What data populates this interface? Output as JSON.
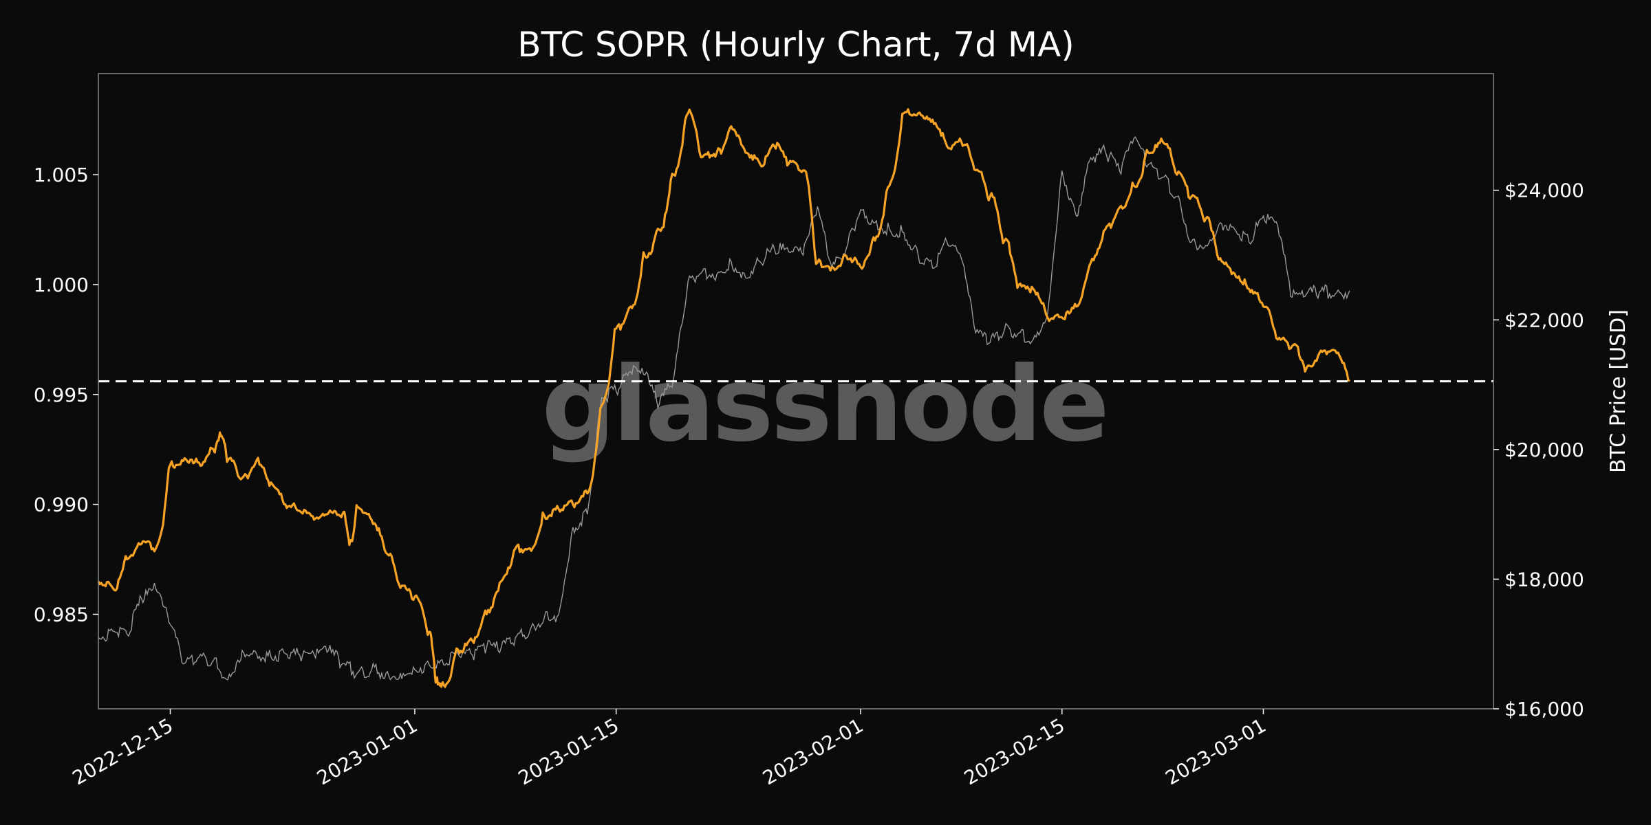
{
  "watermark": "glassnode",
  "chart_data": {
    "type": "line",
    "title": "BTC SOPR (Hourly Chart, 7d MA)",
    "xlabel": "",
    "ylabel_left": "",
    "ylabel_right": "BTC Price [USD]",
    "x_range": [
      "2022-12-10",
      "2023-03-17"
    ],
    "x_ticks": [
      "2022-12-15",
      "2023-01-01",
      "2023-01-15",
      "2023-02-01",
      "2023-02-15",
      "2023-03-01"
    ],
    "ylim_left": [
      0.9807,
      1.0096
    ],
    "y_ticks_left": [
      "0.985",
      "0.990",
      "0.995",
      "1.000",
      "1.005"
    ],
    "ylim_right": [
      16000,
      25800
    ],
    "y_ticks_right": [
      "$16,000",
      "$18,000",
      "$20,000",
      "$22,000",
      "$24,000"
    ],
    "y_tick_values_right": [
      16000,
      18000,
      20000,
      22000,
      24000
    ],
    "reference_line": {
      "y": 0.9956,
      "style": "dashed",
      "color": "#ffffff"
    },
    "grid": false,
    "series": [
      {
        "axis": "left",
        "color": "#f7a325",
        "points": [
          [
            "2022-12-10",
            0.9865
          ],
          [
            "2022-12-11",
            0.9862
          ],
          [
            "2022-12-12",
            0.9875
          ],
          [
            "2022-12-13",
            0.9882
          ],
          [
            "2022-12-14",
            0.988
          ],
          [
            "2022-12-15",
            0.9918
          ],
          [
            "2022-12-16",
            0.9921
          ],
          [
            "2022-12-17",
            0.9919
          ],
          [
            "2022-12-18",
            0.9925
          ],
          [
            "2022-12-18T12",
            0.9931
          ],
          [
            "2022-12-19",
            0.992
          ],
          [
            "2022-12-20",
            0.9912
          ],
          [
            "2022-12-21",
            0.992
          ],
          [
            "2022-12-22",
            0.991
          ],
          [
            "2022-12-23",
            0.99
          ],
          [
            "2022-12-24",
            0.9897
          ],
          [
            "2022-12-25",
            0.9893
          ],
          [
            "2022-12-26",
            0.9896
          ],
          [
            "2022-12-27",
            0.9896
          ],
          [
            "2022-12-27T12",
            0.9883
          ],
          [
            "2022-12-28",
            0.9899
          ],
          [
            "2022-12-29",
            0.9893
          ],
          [
            "2022-12-30",
            0.9878
          ],
          [
            "2022-12-31",
            0.9862
          ],
          [
            "2023-01-01",
            0.9858
          ],
          [
            "2023-01-02",
            0.9842
          ],
          [
            "2023-01-02T12",
            0.982
          ],
          [
            "2023-01-03",
            0.9818
          ],
          [
            "2023-01-04",
            0.9834
          ],
          [
            "2023-01-05",
            0.9838
          ],
          [
            "2023-01-06",
            0.985
          ],
          [
            "2023-01-07",
            0.9865
          ],
          [
            "2023-01-08",
            0.988
          ],
          [
            "2023-01-09",
            0.988
          ],
          [
            "2023-01-10",
            0.9895
          ],
          [
            "2023-01-11",
            0.9898
          ],
          [
            "2023-01-12",
            0.99
          ],
          [
            "2023-01-13",
            0.9905
          ],
          [
            "2023-01-14",
            0.9945
          ],
          [
            "2023-01-15",
            0.998
          ],
          [
            "2023-01-16",
            0.999
          ],
          [
            "2023-01-17",
            1.0013
          ],
          [
            "2023-01-18",
            1.0025
          ],
          [
            "2023-01-19",
            1.005
          ],
          [
            "2023-01-20",
            1.0078
          ],
          [
            "2023-01-21",
            1.0058
          ],
          [
            "2023-01-22",
            1.006
          ],
          [
            "2023-01-23",
            1.0072
          ],
          [
            "2023-01-24",
            1.006
          ],
          [
            "2023-01-25",
            1.0055
          ],
          [
            "2023-01-26",
            1.0063
          ],
          [
            "2023-01-27",
            1.0055
          ],
          [
            "2023-01-28",
            1.0052
          ],
          [
            "2023-01-29",
            1.001
          ],
          [
            "2023-01-30",
            1.0008
          ],
          [
            "2023-01-31",
            1.0013
          ],
          [
            "2023-02-01",
            1.0008
          ],
          [
            "2023-02-02",
            1.002
          ],
          [
            "2023-02-03",
            1.0045
          ],
          [
            "2023-02-04",
            1.0078
          ],
          [
            "2023-02-05",
            1.0078
          ],
          [
            "2023-02-06",
            1.0075
          ],
          [
            "2023-02-07",
            1.0063
          ],
          [
            "2023-02-08",
            1.0065
          ],
          [
            "2023-02-09",
            1.0052
          ],
          [
            "2023-02-10",
            1.004
          ],
          [
            "2023-02-11",
            1.002
          ],
          [
            "2023-02-12",
            1.0
          ],
          [
            "2023-02-13",
            0.9998
          ],
          [
            "2023-02-14",
            0.9985
          ],
          [
            "2023-02-15",
            0.9985
          ],
          [
            "2023-02-16",
            0.999
          ],
          [
            "2023-02-17",
            1.001
          ],
          [
            "2023-02-18",
            1.0025
          ],
          [
            "2023-02-19",
            1.0035
          ],
          [
            "2023-02-20",
            1.0045
          ],
          [
            "2023-02-21",
            1.006
          ],
          [
            "2023-02-22",
            1.0065
          ],
          [
            "2023-02-23",
            1.005
          ],
          [
            "2023-02-24",
            1.004
          ],
          [
            "2023-02-25",
            1.003
          ],
          [
            "2023-02-26",
            1.0012
          ],
          [
            "2023-02-27",
            1.0005
          ],
          [
            "2023-02-28",
            0.9998
          ],
          [
            "2023-03-01",
            0.999
          ],
          [
            "2023-03-02",
            0.9975
          ],
          [
            "2023-03-03",
            0.9972
          ],
          [
            "2023-03-04",
            0.9962
          ],
          [
            "2023-03-05",
            0.997
          ],
          [
            "2023-03-06",
            0.997
          ],
          [
            "2023-03-07",
            0.9956
          ]
        ]
      },
      {
        "axis": "right",
        "color": "#9a9a9a",
        "points": [
          [
            "2022-12-10",
            17100
          ],
          [
            "2022-12-11",
            17200
          ],
          [
            "2022-12-12",
            17150
          ],
          [
            "2022-12-13",
            17700
          ],
          [
            "2022-12-14",
            17850
          ],
          [
            "2022-12-15",
            17300
          ],
          [
            "2022-12-16",
            16700
          ],
          [
            "2022-12-17",
            16800
          ],
          [
            "2022-12-18",
            16750
          ],
          [
            "2022-12-19",
            16450
          ],
          [
            "2022-12-20",
            16900
          ],
          [
            "2022-12-21",
            16850
          ],
          [
            "2022-12-22",
            16800
          ],
          [
            "2022-12-23",
            16850
          ],
          [
            "2022-12-24",
            16830
          ],
          [
            "2022-12-25",
            16840
          ],
          [
            "2022-12-26",
            16900
          ],
          [
            "2022-12-27",
            16700
          ],
          [
            "2022-12-28",
            16550
          ],
          [
            "2022-12-29",
            16600
          ],
          [
            "2022-12-30",
            16550
          ],
          [
            "2022-12-31",
            16550
          ],
          [
            "2023-01-01",
            16600
          ],
          [
            "2023-01-02",
            16680
          ],
          [
            "2023-01-03",
            16680
          ],
          [
            "2023-01-04",
            16850
          ],
          [
            "2023-01-05",
            16830
          ],
          [
            "2023-01-06",
            16950
          ],
          [
            "2023-01-07",
            16940
          ],
          [
            "2023-01-08",
            17100
          ],
          [
            "2023-01-09",
            17200
          ],
          [
            "2023-01-10",
            17400
          ],
          [
            "2023-01-11",
            17450
          ],
          [
            "2023-01-12",
            18800
          ],
          [
            "2023-01-13",
            19000
          ],
          [
            "2023-01-14",
            20800
          ],
          [
            "2023-01-15",
            20900
          ],
          [
            "2023-01-16",
            21200
          ],
          [
            "2023-01-17",
            21150
          ],
          [
            "2023-01-18",
            20700
          ],
          [
            "2023-01-19",
            21100
          ],
          [
            "2023-01-20",
            22600
          ],
          [
            "2023-01-21",
            22750
          ],
          [
            "2023-01-22",
            22700
          ],
          [
            "2023-01-23",
            22900
          ],
          [
            "2023-01-24",
            22650
          ],
          [
            "2023-01-25",
            22900
          ],
          [
            "2023-01-26",
            23100
          ],
          [
            "2023-01-27",
            23050
          ],
          [
            "2023-01-28",
            23000
          ],
          [
            "2023-01-29",
            23750
          ],
          [
            "2023-01-30",
            22800
          ],
          [
            "2023-01-31",
            23100
          ],
          [
            "2023-02-01",
            23700
          ],
          [
            "2023-02-02",
            23500
          ],
          [
            "2023-02-03",
            23400
          ],
          [
            "2023-02-04",
            23350
          ],
          [
            "2023-02-05",
            23000
          ],
          [
            "2023-02-06",
            22800
          ],
          [
            "2023-02-07",
            23200
          ],
          [
            "2023-02-08",
            22950
          ],
          [
            "2023-02-09",
            21800
          ],
          [
            "2023-02-10",
            21650
          ],
          [
            "2023-02-11",
            21850
          ],
          [
            "2023-02-12",
            21800
          ],
          [
            "2023-02-13",
            21700
          ],
          [
            "2023-02-14",
            22100
          ],
          [
            "2023-02-15",
            24300
          ],
          [
            "2023-02-16",
            23600
          ],
          [
            "2023-02-17",
            24500
          ],
          [
            "2023-02-18",
            24600
          ],
          [
            "2023-02-19",
            24300
          ],
          [
            "2023-02-20",
            24800
          ],
          [
            "2023-02-21",
            24400
          ],
          [
            "2023-02-22",
            24200
          ],
          [
            "2023-02-23",
            23900
          ],
          [
            "2023-02-24",
            23200
          ],
          [
            "2023-02-25",
            23150
          ],
          [
            "2023-02-26",
            23500
          ],
          [
            "2023-02-27",
            23400
          ],
          [
            "2023-02-28",
            23200
          ],
          [
            "2023-03-01",
            23600
          ],
          [
            "2023-03-02",
            23450
          ],
          [
            "2023-03-03",
            22350
          ],
          [
            "2023-03-04",
            22400
          ],
          [
            "2023-03-05",
            22450
          ],
          [
            "2023-03-06",
            22400
          ],
          [
            "2023-03-07",
            22450
          ]
        ]
      }
    ]
  }
}
